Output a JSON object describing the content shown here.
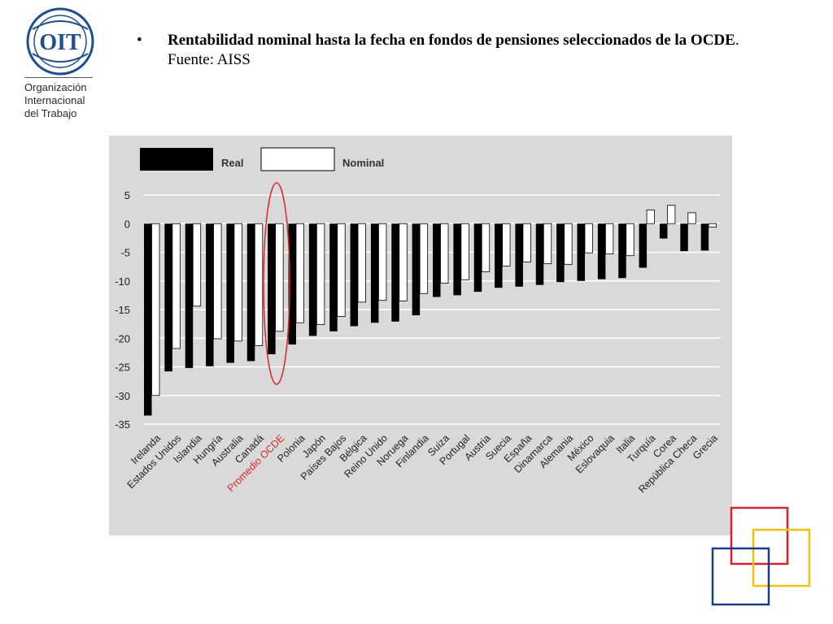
{
  "logo": {
    "text": "OIT",
    "icon": "ilo-globe-emblem"
  },
  "org": {
    "line1": "Organización",
    "line2": "Internacional",
    "line3": "del Trabajo"
  },
  "slide": {
    "bullet": "•",
    "title_bold": "Rentabilidad nominal hasta la fecha en fondos de pensiones seleccionados de la OCDE",
    "title_rest": ". Fuente: AISS"
  },
  "colors": {
    "panel": "#d9d9d9",
    "real": "#000000",
    "nominal": "#ffffff",
    "highlight": "#e0262a",
    "deco_red": "#d7222a",
    "deco_yellow": "#f2c10e",
    "deco_blue": "#1f3b8f"
  },
  "chart_data": {
    "type": "bar",
    "ylim": [
      -35,
      5
    ],
    "yticks": [
      5,
      0,
      -5,
      -10,
      -15,
      -20,
      -25,
      -30,
      -35
    ],
    "grid": true,
    "legend_position": "top-left",
    "highlight_category": "Promedio OCDE",
    "categories": [
      "Irelanda",
      "Estados Unidos",
      "Islandia",
      "Hungría",
      "Australia",
      "Canadá",
      "Promedio OCDE",
      "Polonia",
      "Japón",
      "Países Bajos",
      "Bélgica",
      "Reino Unido",
      "Noruega",
      "Finlandia",
      "Suiza",
      "Portugal",
      "Austria",
      "Suecia",
      "España",
      "Dinamarca",
      "Alemania",
      "México",
      "Eslovaquia",
      "Italia",
      "Turquía",
      "Corea",
      "República Checa",
      "Grecia"
    ],
    "series": [
      {
        "name": "Real",
        "values": [
          -33.5,
          -25.8,
          -25.2,
          -24.9,
          -24.3,
          -24.0,
          -22.8,
          -21.1,
          -19.6,
          -18.8,
          -17.9,
          -17.3,
          -17.1,
          -16.0,
          -12.8,
          -12.5,
          -11.9,
          -11.2,
          -11.0,
          -10.7,
          -10.2,
          -10.0,
          -9.7,
          -9.5,
          -7.7,
          -2.6,
          -4.8,
          -4.7
        ]
      },
      {
        "name": "Nominal",
        "values": [
          -30.0,
          -21.8,
          -14.4,
          -20.1,
          -20.5,
          -21.3,
          -18.8,
          -17.3,
          -17.6,
          -16.2,
          -13.7,
          -13.4,
          -13.5,
          -12.2,
          -10.4,
          -9.8,
          -8.4,
          -7.4,
          -6.7,
          -7.0,
          -7.1,
          -5.1,
          -5.3,
          -5.6,
          2.4,
          3.2,
          1.9,
          -0.6
        ]
      }
    ]
  }
}
